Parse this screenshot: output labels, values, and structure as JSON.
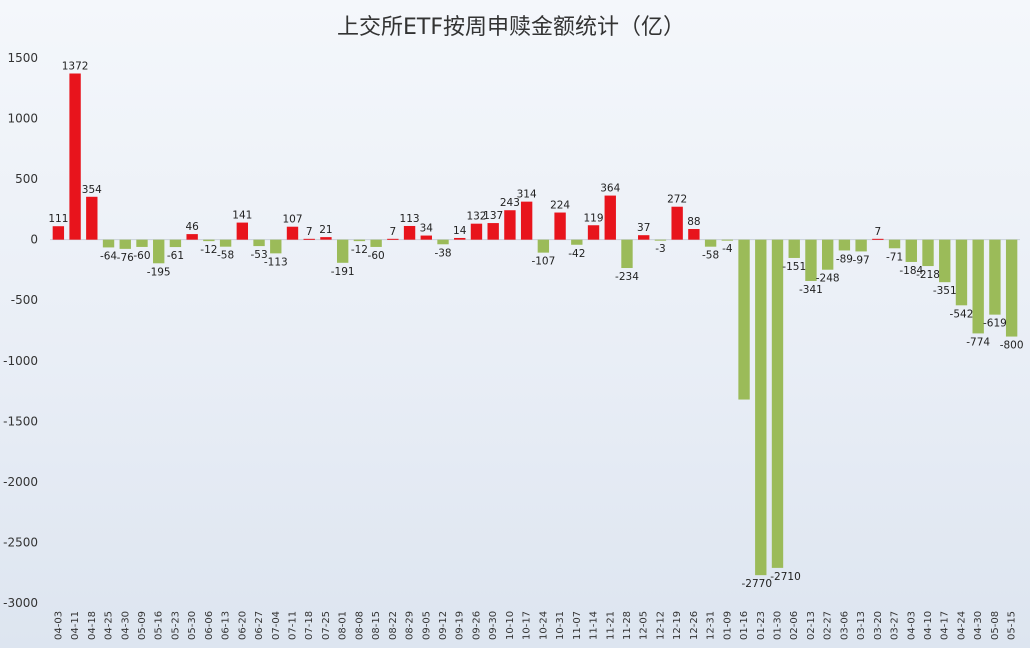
{
  "chart_data": {
    "type": "bar",
    "title": "上交所ETF按周申赎金额统计（亿）",
    "xlabel": "",
    "ylabel": "",
    "ylim": [
      -3000,
      1500
    ],
    "yticks": [
      1500,
      1000,
      500,
      0,
      -500,
      -1000,
      -1500,
      -2000,
      -2500,
      -3000
    ],
    "grid": false,
    "legend": "none",
    "colors": {
      "positive": "#e8141c",
      "negative": "#9bbb59"
    },
    "categories": [
      "04-03",
      "04-11",
      "04-18",
      "04-25",
      "04-30",
      "05-09",
      "05-16",
      "05-23",
      "05-30",
      "06-06",
      "06-13",
      "06-20",
      "06-27",
      "07-04",
      "07-11",
      "07-18",
      "07-25",
      "08-01",
      "08-08",
      "08-15",
      "08-22",
      "08-29",
      "09-05",
      "09-12",
      "09-19",
      "09-26",
      "09-30",
      "10-10",
      "10-17",
      "10-24",
      "10-31",
      "11-07",
      "11-14",
      "11-21",
      "11-28",
      "12-05",
      "12-12",
      "12-19",
      "12-26",
      "12-31",
      "01-09",
      "01-16",
      "01-23",
      "01-30",
      "02-06",
      "02-13",
      "02-27",
      "03-06",
      "03-13",
      "03-20",
      "03-27",
      "04-03",
      "04-10",
      "04-17",
      "04-24",
      "04-30",
      "05-08",
      "05-15"
    ],
    "values": [
      111,
      1372,
      354,
      -64,
      -76,
      -60,
      -195,
      -61,
      46,
      -12,
      -58,
      141,
      -53,
      -113,
      107,
      7,
      21,
      -191,
      -12,
      -60,
      7,
      113,
      34,
      -38,
      14,
      132,
      137,
      243,
      314,
      -107,
      224,
      -42,
      119,
      364,
      -234,
      37,
      -3,
      272,
      88,
      -58,
      -4,
      -1320,
      -2770,
      -2710,
      -151,
      -341,
      -248,
      -89,
      -97,
      7,
      -71,
      -184,
      -218,
      -351,
      -542,
      -774,
      -619,
      -800
    ],
    "labels": [
      "111",
      "1372",
      "354",
      "-64",
      "-76",
      "-60",
      "-195",
      "-61",
      "46",
      "-12",
      "-58",
      "141",
      "-53",
      "-113",
      "107",
      "7",
      "21",
      "-191",
      "-12",
      "-60",
      "7",
      "113",
      "34",
      "-38",
      "14",
      "132",
      "137",
      "243",
      "314",
      "-107",
      "224",
      "-42",
      "119",
      "364",
      "-234",
      "37",
      "-3",
      "272",
      "88",
      "-58",
      "-4",
      "",
      "-2770",
      "-2710",
      "-151",
      "-341",
      "-248",
      "-89",
      "-97",
      "7",
      "-71",
      "-184",
      "-218",
      "-351",
      "-542",
      "-774",
      "-619",
      "-800"
    ]
  }
}
